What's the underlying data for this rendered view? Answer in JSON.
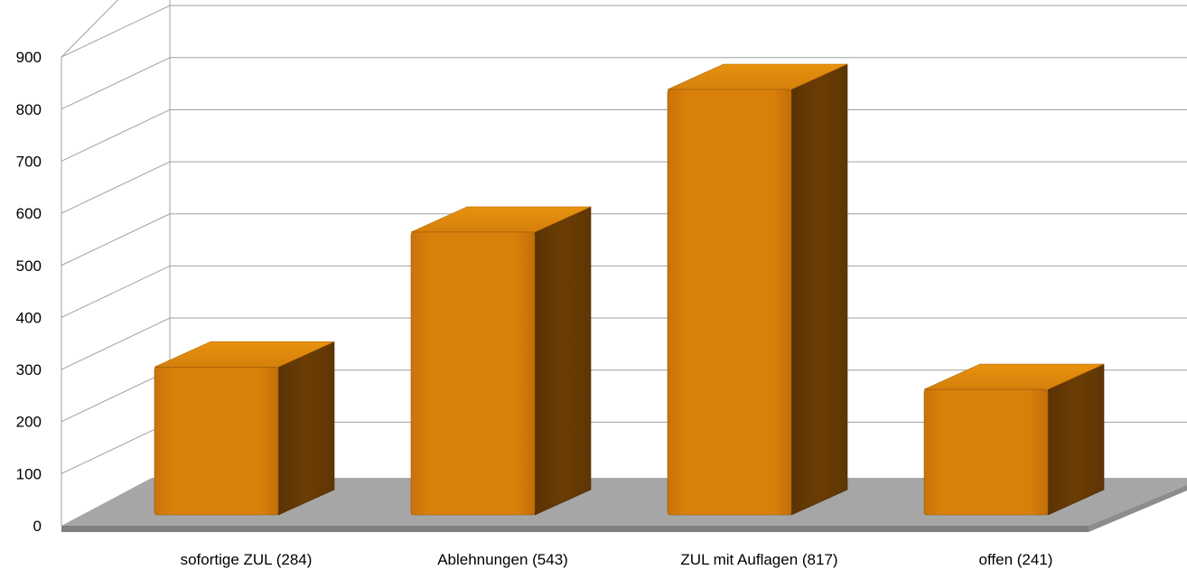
{
  "chart_data": {
    "type": "bar",
    "style": "3d-column",
    "categories": [
      "sofortige ZUL (284)",
      "Ablehnungen (543)",
      "ZUL mit Auflagen (817)",
      "offen (241)"
    ],
    "values": [
      284,
      543,
      817,
      241
    ],
    "yticks": [
      "0",
      "100",
      "200",
      "300",
      "400",
      "500",
      "600",
      "700",
      "800",
      "900"
    ],
    "ylim": [
      0,
      900
    ],
    "title": "",
    "xlabel": "",
    "ylabel": "",
    "grid": true,
    "legend": "none",
    "colors": {
      "bar_front": "#d9800b",
      "bar_top": "#e8920e",
      "bar_side": "#6b3d04",
      "floor": "#a6a6a6",
      "floor_edge": "#7f7f7f",
      "grid": "#a0a0a0"
    }
  }
}
